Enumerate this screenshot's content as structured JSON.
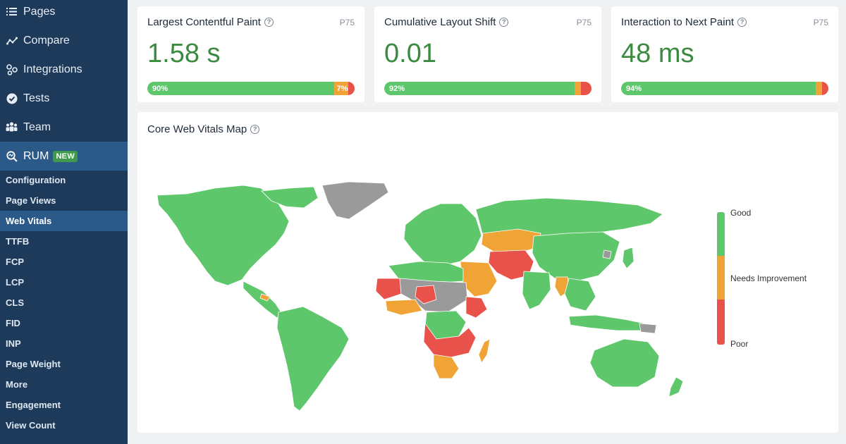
{
  "sidebar": {
    "nav": [
      {
        "label": "Pages",
        "icon": "list-icon"
      },
      {
        "label": "Compare",
        "icon": "compare-icon"
      },
      {
        "label": "Integrations",
        "icon": "integrations-icon"
      },
      {
        "label": "Tests",
        "icon": "check-circle-icon"
      },
      {
        "label": "Team",
        "icon": "team-icon"
      }
    ],
    "rum": {
      "label": "RUM",
      "badge": "NEW",
      "icon": "rum-search-icon"
    },
    "subitems": [
      {
        "label": "Configuration"
      },
      {
        "label": "Page Views"
      },
      {
        "label": "Web Vitals",
        "active": true
      },
      {
        "label": "TTFB"
      },
      {
        "label": "FCP"
      },
      {
        "label": "LCP"
      },
      {
        "label": "CLS"
      },
      {
        "label": "FID"
      },
      {
        "label": "INP"
      },
      {
        "label": "Page Weight"
      },
      {
        "label": "More"
      },
      {
        "label": "Engagement"
      },
      {
        "label": "View Count"
      }
    ]
  },
  "metrics": [
    {
      "title": "Largest Contentful Paint",
      "percentile": "P75",
      "value": "1.58 s",
      "distribution": {
        "good": 90,
        "needs_improvement": 7,
        "poor": 3
      },
      "good_label": "90%",
      "ni_label": "7%"
    },
    {
      "title": "Cumulative Layout Shift",
      "percentile": "P75",
      "value": "0.01",
      "distribution": {
        "good": 92,
        "needs_improvement": 3,
        "poor": 5
      },
      "good_label": "92%",
      "ni_label": ""
    },
    {
      "title": "Interaction to Next Paint",
      "percentile": "P75",
      "value": "48 ms",
      "distribution": {
        "good": 94,
        "needs_improvement": 3,
        "poor": 3
      },
      "good_label": "94%",
      "ni_label": ""
    }
  ],
  "map": {
    "title": "Core Web Vitals Map",
    "legend": {
      "good": "Good",
      "needs_improvement": "Needs Improvement",
      "poor": "Poor"
    },
    "colors": {
      "good": "#5ec76c",
      "needs_improvement": "#f0a436",
      "poor": "#e9524a",
      "no_data": "#9a9a9a"
    }
  }
}
